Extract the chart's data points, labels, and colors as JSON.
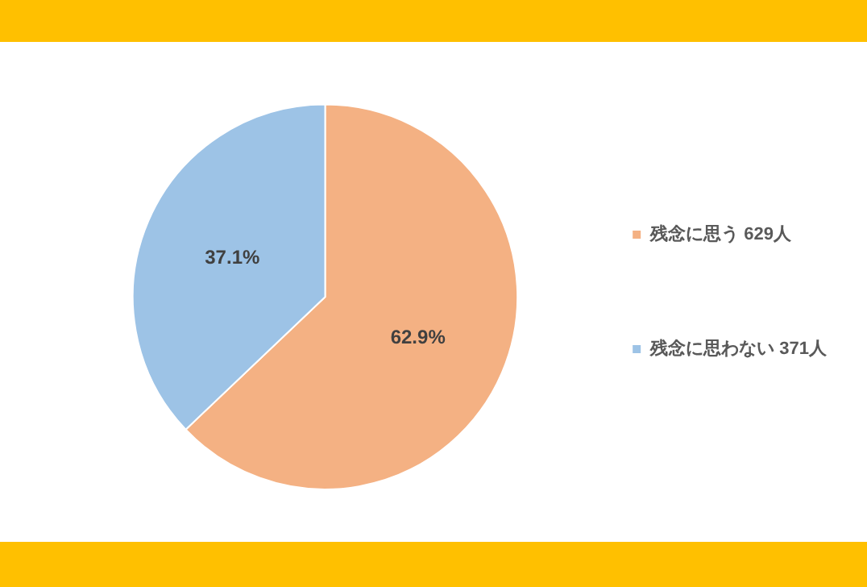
{
  "chart_data": {
    "type": "pie",
    "categories": [
      "残念に思う 629人",
      "残念に思わない 371人"
    ],
    "values": [
      62.9,
      37.1
    ],
    "value_labels": [
      "62.9%",
      "37.1%"
    ],
    "colors": [
      "#f4b183",
      "#9dc3e6"
    ],
    "legend": "right"
  }
}
